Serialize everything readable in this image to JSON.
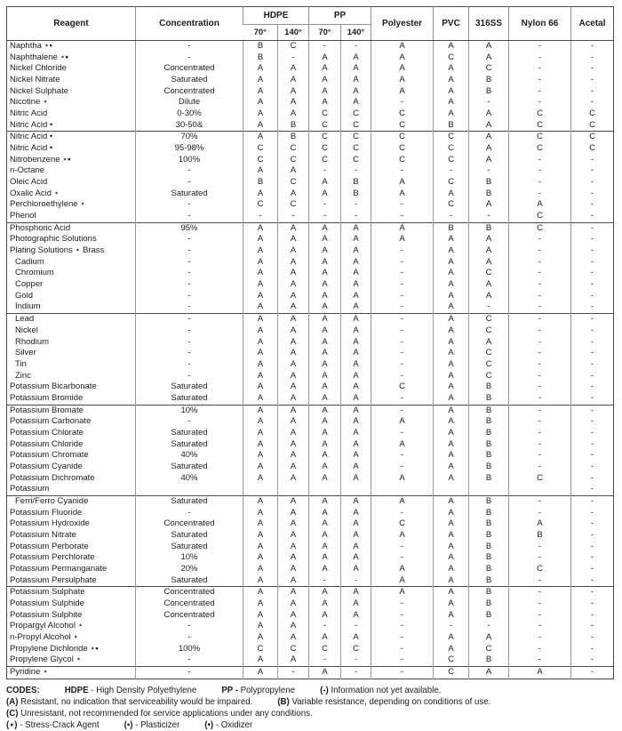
{
  "table": {
    "headers": {
      "reagent": "Reagent",
      "concentration": "Concentration",
      "hdpe": "HDPE",
      "pp": "PP",
      "temp70": "70°",
      "temp140": "140°",
      "polyester": "Polyester",
      "pvc": "PVC",
      "ss316": "316SS",
      "nylon66": "Nylon 66",
      "acetal": "Acetal"
    },
    "rows": [
      {
        "r": "Naphtha ⋆▪",
        "c": "-",
        "v": [
          "B",
          "C",
          "-",
          "-",
          "A",
          "A",
          "A",
          "-",
          "-"
        ]
      },
      {
        "r": "Naphthalene ⋆▪",
        "c": "-",
        "v": [
          "B",
          "-",
          "A",
          "A",
          "A",
          "C",
          "A",
          "-",
          "-"
        ]
      },
      {
        "r": "Nickel Chloride",
        "c": "Concentrated",
        "v": [
          "A",
          "A",
          "A",
          "A",
          "A",
          "A",
          "C",
          "-",
          "-"
        ]
      },
      {
        "r": "Nickel Nitrate",
        "c": "Saturated",
        "v": [
          "A",
          "A",
          "A",
          "A",
          "A",
          "A",
          "B",
          "-",
          "-"
        ]
      },
      {
        "r": "Nickel Sulphate",
        "c": "Concentrated",
        "v": [
          "A",
          "A",
          "A",
          "A",
          "A",
          "A",
          "B",
          "-",
          "-"
        ]
      },
      {
        "r": "Nicotine ⋆",
        "c": "Dilute",
        "v": [
          "A",
          "A",
          "A",
          "A",
          "-",
          "A",
          "-",
          "-",
          "-"
        ]
      },
      {
        "r": "Nitric Acid",
        "c": "0-30%",
        "v": [
          "A",
          "A",
          "C",
          "C",
          "C",
          "A",
          "A",
          "C",
          "C"
        ]
      },
      {
        "r": "Nitric Acid •",
        "c": "30-50&",
        "v": [
          "A",
          "B",
          "C",
          "C",
          "C",
          "B",
          "A",
          "C",
          "C"
        ]
      },
      {
        "r": "Nitric Acid •",
        "c": "70%",
        "v": [
          "A",
          "B",
          "C",
          "C",
          "C",
          "C",
          "A",
          "C",
          "C"
        ],
        "div": 1
      },
      {
        "r": "Nitric Acid •",
        "c": "95-98%",
        "v": [
          "C",
          "C",
          "C",
          "C",
          "C",
          "C",
          "A",
          "C",
          "C"
        ]
      },
      {
        "r": "Nitrobenzene ⋆▪",
        "c": "100%",
        "v": [
          "C",
          "C",
          "C",
          "C",
          "C",
          "C",
          "A",
          "-",
          "-"
        ]
      },
      {
        "r": "n-Octane",
        "c": "-",
        "v": [
          "A",
          "A",
          "-",
          "-",
          "-",
          "-",
          "-",
          "-",
          "-"
        ]
      },
      {
        "r": "Oleic Acid",
        "c": "-",
        "v": [
          "B",
          "C",
          "A",
          "B",
          "A",
          "C",
          "B",
          "-",
          "-"
        ]
      },
      {
        "r": "Oxalic Acid ⋆",
        "c": "Saturated",
        "v": [
          "A",
          "A",
          "A",
          "B",
          "A",
          "A",
          "B",
          "-",
          "-"
        ]
      },
      {
        "r": "Perchloroethylene ⋆",
        "c": "-",
        "v": [
          "C",
          "C",
          "-",
          "-",
          "-",
          "C",
          "A",
          "A",
          "-"
        ]
      },
      {
        "r": "Phenol",
        "c": "-",
        "v": [
          "-",
          "-",
          "-",
          "-",
          "-",
          "-",
          "-",
          "C",
          "-"
        ]
      },
      {
        "r": "Phosphoric Acid",
        "c": "95%",
        "v": [
          "A",
          "A",
          "A",
          "A",
          "A",
          "B",
          "B",
          "C",
          "-"
        ],
        "div": 1
      },
      {
        "r": "Photographic Solutions",
        "c": "-",
        "v": [
          "A",
          "A",
          "A",
          "A",
          "A",
          "A",
          "A",
          "-",
          "-"
        ]
      },
      {
        "r": "Plating Solutions ⋆ Brass",
        "c": "-",
        "v": [
          "A",
          "A",
          "A",
          "A",
          "-",
          "A",
          "A",
          "-",
          "-"
        ]
      },
      {
        "r": "Cadium",
        "c": "-",
        "v": [
          "A",
          "A",
          "A",
          "A",
          "-",
          "A",
          "A",
          "-",
          "-"
        ],
        "ind": 1
      },
      {
        "r": "Chromium",
        "c": "-",
        "v": [
          "A",
          "A",
          "A",
          "A",
          "-",
          "A",
          "C",
          "-",
          "-"
        ],
        "ind": 1
      },
      {
        "r": "Copper",
        "c": "-",
        "v": [
          "A",
          "A",
          "A",
          "A",
          "-",
          "A",
          "A",
          "-",
          "-"
        ],
        "ind": 1
      },
      {
        "r": "Gold",
        "c": "-",
        "v": [
          "A",
          "A",
          "A",
          "A",
          "-",
          "A",
          "A",
          "-",
          "-"
        ],
        "ind": 1
      },
      {
        "r": "Indium",
        "c": "-",
        "v": [
          "A",
          "A",
          "A",
          "A",
          "-",
          "A",
          "-",
          "-",
          "-"
        ],
        "ind": 1
      },
      {
        "r": "Lead",
        "c": "-",
        "v": [
          "A",
          "A",
          "A",
          "A",
          "-",
          "A",
          "C",
          "-",
          "-"
        ],
        "ind": 1,
        "div": 1
      },
      {
        "r": "Nickel",
        "c": "-",
        "v": [
          "A",
          "A",
          "A",
          "A",
          "-",
          "A",
          "C",
          "-",
          "-"
        ],
        "ind": 1
      },
      {
        "r": "Rhodium",
        "c": "-",
        "v": [
          "A",
          "A",
          "A",
          "A",
          "-",
          "A",
          "A",
          "-",
          "-"
        ],
        "ind": 1
      },
      {
        "r": "Silver",
        "c": "-",
        "v": [
          "A",
          "A",
          "A",
          "A",
          "-",
          "A",
          "C",
          "-",
          "-"
        ],
        "ind": 1
      },
      {
        "r": "Tin",
        "c": "-",
        "v": [
          "A",
          "A",
          "A",
          "A",
          "-",
          "A",
          "C",
          "-",
          "-"
        ],
        "ind": 1
      },
      {
        "r": "Zinc",
        "c": "-",
        "v": [
          "A",
          "A",
          "A",
          "A",
          "-",
          "A",
          "C",
          "-",
          "-"
        ],
        "ind": 1
      },
      {
        "r": "Potassium Bicarbonate",
        "c": "Saturated",
        "v": [
          "A",
          "A",
          "A",
          "A",
          "C",
          "A",
          "B",
          "-",
          "-"
        ]
      },
      {
        "r": "Potassium Bromide",
        "c": "Saturated",
        "v": [
          "A",
          "A",
          "A",
          "A",
          "-",
          "A",
          "B",
          "-",
          "-"
        ]
      },
      {
        "r": "Potassium Bromate",
        "c": "10%",
        "v": [
          "A",
          "A",
          "A",
          "A",
          "-",
          "A",
          "B",
          "-",
          "-"
        ],
        "div": 1
      },
      {
        "r": "Potassium Carbonate",
        "c": "-",
        "v": [
          "A",
          "A",
          "A",
          "A",
          "A",
          "A",
          "B",
          "-",
          "-"
        ]
      },
      {
        "r": "Potassium Chlorate",
        "c": "Saturated",
        "v": [
          "A",
          "A",
          "A",
          "A",
          "-",
          "A",
          "B",
          "-",
          "-"
        ]
      },
      {
        "r": "Potassium Chloride",
        "c": "Saturated",
        "v": [
          "A",
          "A",
          "A",
          "A",
          "A",
          "A",
          "B",
          "-",
          "-"
        ]
      },
      {
        "r": "Potassium Chromate",
        "c": "40%",
        "v": [
          "A",
          "A",
          "A",
          "A",
          "-",
          "A",
          "B",
          "-",
          "-"
        ]
      },
      {
        "r": "Potassium Cyanide",
        "c": "Saturated",
        "v": [
          "A",
          "A",
          "A",
          "A",
          "-",
          "A",
          "B",
          "-",
          "-"
        ]
      },
      {
        "r": "Potassium Dichromate",
        "c": "40%",
        "v": [
          "A",
          "A",
          "A",
          "A",
          "A",
          "A",
          "B",
          "C",
          "-"
        ]
      },
      {
        "r": "Potassium",
        "c": "",
        "v": [
          "",
          "",
          "",
          "",
          "",
          "",
          "",
          "",
          "-"
        ]
      },
      {
        "r": "Ferri/Ferro Cyanide",
        "c": "Saturated",
        "v": [
          "A",
          "A",
          "A",
          "A",
          "A",
          "A",
          "B",
          "-",
          "-"
        ],
        "ind": 1,
        "div": 1
      },
      {
        "r": "Potassium Fluoride",
        "c": "-",
        "v": [
          "A",
          "A",
          "A",
          "A",
          "-",
          "A",
          "B",
          "-",
          "-"
        ]
      },
      {
        "r": "Potassium Hydroxide",
        "c": "Concentrated",
        "v": [
          "A",
          "A",
          "A",
          "A",
          "C",
          "A",
          "B",
          "A",
          "-"
        ]
      },
      {
        "r": "Potassium Nitrate",
        "c": "Saturated",
        "v": [
          "A",
          "A",
          "A",
          "A",
          "A",
          "A",
          "B",
          "B",
          "-"
        ]
      },
      {
        "r": "Potassium Perborate",
        "c": "Saturated",
        "v": [
          "A",
          "A",
          "A",
          "A",
          "-",
          "A",
          "B",
          "-",
          "-"
        ]
      },
      {
        "r": "Potassium Perchlorate",
        "c": "10%",
        "v": [
          "A",
          "A",
          "A",
          "A",
          "-",
          "A",
          "B",
          "-",
          "-"
        ]
      },
      {
        "r": "Potassium Permanganate",
        "c": "20%",
        "v": [
          "A",
          "A",
          "A",
          "A",
          "A",
          "A",
          "B",
          "C",
          "-"
        ]
      },
      {
        "r": "Potassium Persulphate",
        "c": "Saturated",
        "v": [
          "A",
          "A",
          "-",
          "-",
          "A",
          "A",
          "B",
          "-",
          "-"
        ]
      },
      {
        "r": "Potassium Sulphate",
        "c": "Concentrated",
        "v": [
          "A",
          "A",
          "A",
          "A",
          "A",
          "A",
          "B",
          "-",
          "-"
        ],
        "div": 1
      },
      {
        "r": "Potassium Sulphide",
        "c": "Concentrated",
        "v": [
          "A",
          "A",
          "A",
          "A",
          "-",
          "A",
          "B",
          "-",
          "-"
        ]
      },
      {
        "r": "Potassium Sulphite",
        "c": "Concentrated",
        "v": [
          "A",
          "A",
          "A",
          "A",
          "-",
          "A",
          "B",
          "-",
          "-"
        ]
      },
      {
        "r": "Propargyl Alcohol ⋆",
        "c": "-",
        "v": [
          "A",
          "A",
          "-",
          "-",
          "-",
          "-",
          "-",
          "-",
          "-"
        ]
      },
      {
        "r": "n-Propyl Alcohol ⋆",
        "c": "-",
        "v": [
          "A",
          "A",
          "A",
          "A",
          "-",
          "A",
          "A",
          "-",
          "-"
        ]
      },
      {
        "r": "Propylene Dichloride ⋆▪",
        "c": "100%",
        "v": [
          "C",
          "C",
          "C",
          "C",
          "-",
          "A",
          "C",
          "-",
          "-"
        ]
      },
      {
        "r": "Propylene Glycol ⋆",
        "c": "-",
        "v": [
          "A",
          "A",
          "-",
          "-",
          "-",
          "C",
          "B",
          "-",
          "-"
        ]
      },
      {
        "r": "Pyridine ⋆",
        "c": "-",
        "v": [
          "A",
          "-",
          "A",
          "-",
          "-",
          "C",
          "A",
          "A",
          "-"
        ],
        "div": 1
      }
    ]
  },
  "footer": {
    "lines": [
      [
        {
          "b": "CODES:",
          "t": ""
        },
        {
          "b": "HDPE",
          "t": " - High Density Polyethylene"
        },
        {
          "b": "PP -",
          "t": " Polypropylene"
        },
        {
          "b": "(-)",
          "t": " Information not yet available."
        }
      ],
      [
        {
          "b": "(A)",
          "t": " Resistant, no indication that serviceability would be impaired."
        },
        {
          "b": "(B)",
          "t": " Variable resistance, depending on conditions of use."
        }
      ],
      [
        {
          "b": "(C)",
          "t": " Unresistant, not recommended for service applications under any conditions."
        }
      ],
      [
        {
          "b": "(⋆)",
          "t": " - Stress-Crack Agent"
        },
        {
          "b": "(▪)",
          "t": " - Plasticizer"
        },
        {
          "b": "(•)",
          "t": " - Oxidizer"
        }
      ]
    ]
  }
}
